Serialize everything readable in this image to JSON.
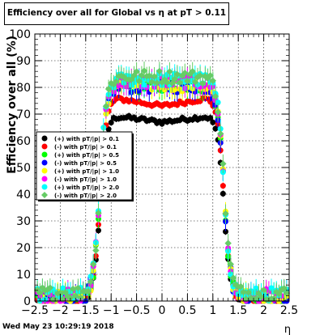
{
  "chart_data": {
    "type": "scatter",
    "title": "Efficiency over all for Global vs   η at pT > 0.11",
    "xlabel": "η",
    "ylabel": "Efficiency over all (%)",
    "xlim": [
      -2.5,
      2.5
    ],
    "ylim": [
      0,
      100
    ],
    "xticks": [
      "−2.5",
      "−2",
      "−1.5",
      "−1",
      "−0.5",
      "0",
      "0.5",
      "1",
      "1.5",
      "2",
      "2.5"
    ],
    "yticks": [
      "0",
      "10",
      "20",
      "30",
      "40",
      "50",
      "60",
      "70",
      "80",
      "90",
      "100"
    ],
    "grid": true,
    "legend_position": "center-left",
    "footer": "Wed May 23 10:29:19 2018",
    "series": [
      {
        "name": "(+) with pT/|p| > 0.1",
        "color": "#000000",
        "plateau": 68.5,
        "lo": 0
      },
      {
        "name": "(-) with pT/|p| > 0.1",
        "color": "#ff0000",
        "plateau": 75,
        "lo": 0
      },
      {
        "name": "(+) with pT/|p| > 0.5",
        "color": "#00ff00",
        "plateau": 80.5,
        "lo": 1
      },
      {
        "name": "(-) with pT/|p| > 0.5",
        "color": "#0000ff",
        "plateau": 80.5,
        "lo": 1
      },
      {
        "name": "(+) with pT/|p| > 1.0",
        "color": "#ffff00",
        "plateau": 81,
        "lo": 1.5
      },
      {
        "name": "(-) with pT/|p| > 1.0",
        "color": "#ff00ff",
        "plateau": 82,
        "lo": 2
      },
      {
        "name": "(+) with pT/|p| > 2.0",
        "color": "#00ffff",
        "plateau": 83,
        "lo": 2.5
      },
      {
        "name": "(-) with pT/|p| > 2.0",
        "color": "#66cc66",
        "plateau": 84,
        "lo": 3
      }
    ]
  }
}
